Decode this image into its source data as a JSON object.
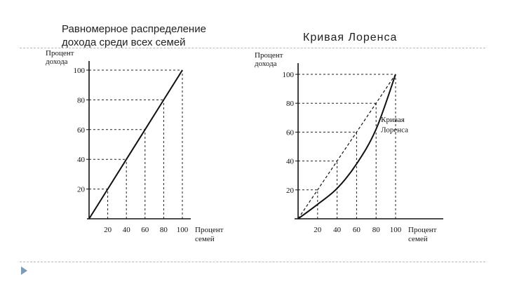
{
  "slide": {
    "left_heading_line1": "Равномерное распределение",
    "left_heading_line2": "дохода среди всех семей",
    "right_heading": "Кривая Лоренса"
  },
  "chart_data": [
    {
      "type": "line",
      "title": "Равномерное распределение дохода среди всех семей",
      "xlabel": "Процент семей",
      "ylabel": "Процент дохода",
      "x_ticks": [
        "20",
        "40",
        "60",
        "80",
        "100"
      ],
      "y_ticks": [
        "20",
        "40",
        "60",
        "80",
        "100"
      ],
      "xlim": [
        0,
        100
      ],
      "ylim": [
        0,
        100
      ],
      "grid": "dashed guide lines at tick values",
      "series": [
        {
          "x": [
            0,
            20,
            40,
            60,
            80,
            100
          ],
          "y": [
            0,
            20,
            40,
            60,
            80,
            100
          ],
          "style": "solid"
        }
      ]
    },
    {
      "type": "line",
      "title": "Кривая Лоренса",
      "xlabel": "Процент семей",
      "ylabel": "Процент дохода",
      "x_ticks": [
        "20",
        "40",
        "60",
        "80",
        "100"
      ],
      "y_ticks": [
        "20",
        "40",
        "60",
        "80",
        "100"
      ],
      "xlim": [
        0,
        100
      ],
      "ylim": [
        0,
        100
      ],
      "annotation": "Кривая Лоренса",
      "grid": "dashed guide lines at tick values",
      "series": [
        {
          "x": [
            0,
            20,
            40,
            60,
            80,
            100
          ],
          "y": [
            0,
            20,
            40,
            60,
            80,
            100
          ],
          "style": "dashed"
        },
        {
          "name": "Кривая Лоренса",
          "x": [
            0,
            20,
            40,
            60,
            80,
            100
          ],
          "y": [
            0,
            10,
            21,
            38,
            62,
            100
          ],
          "style": "solid"
        }
      ]
    }
  ]
}
